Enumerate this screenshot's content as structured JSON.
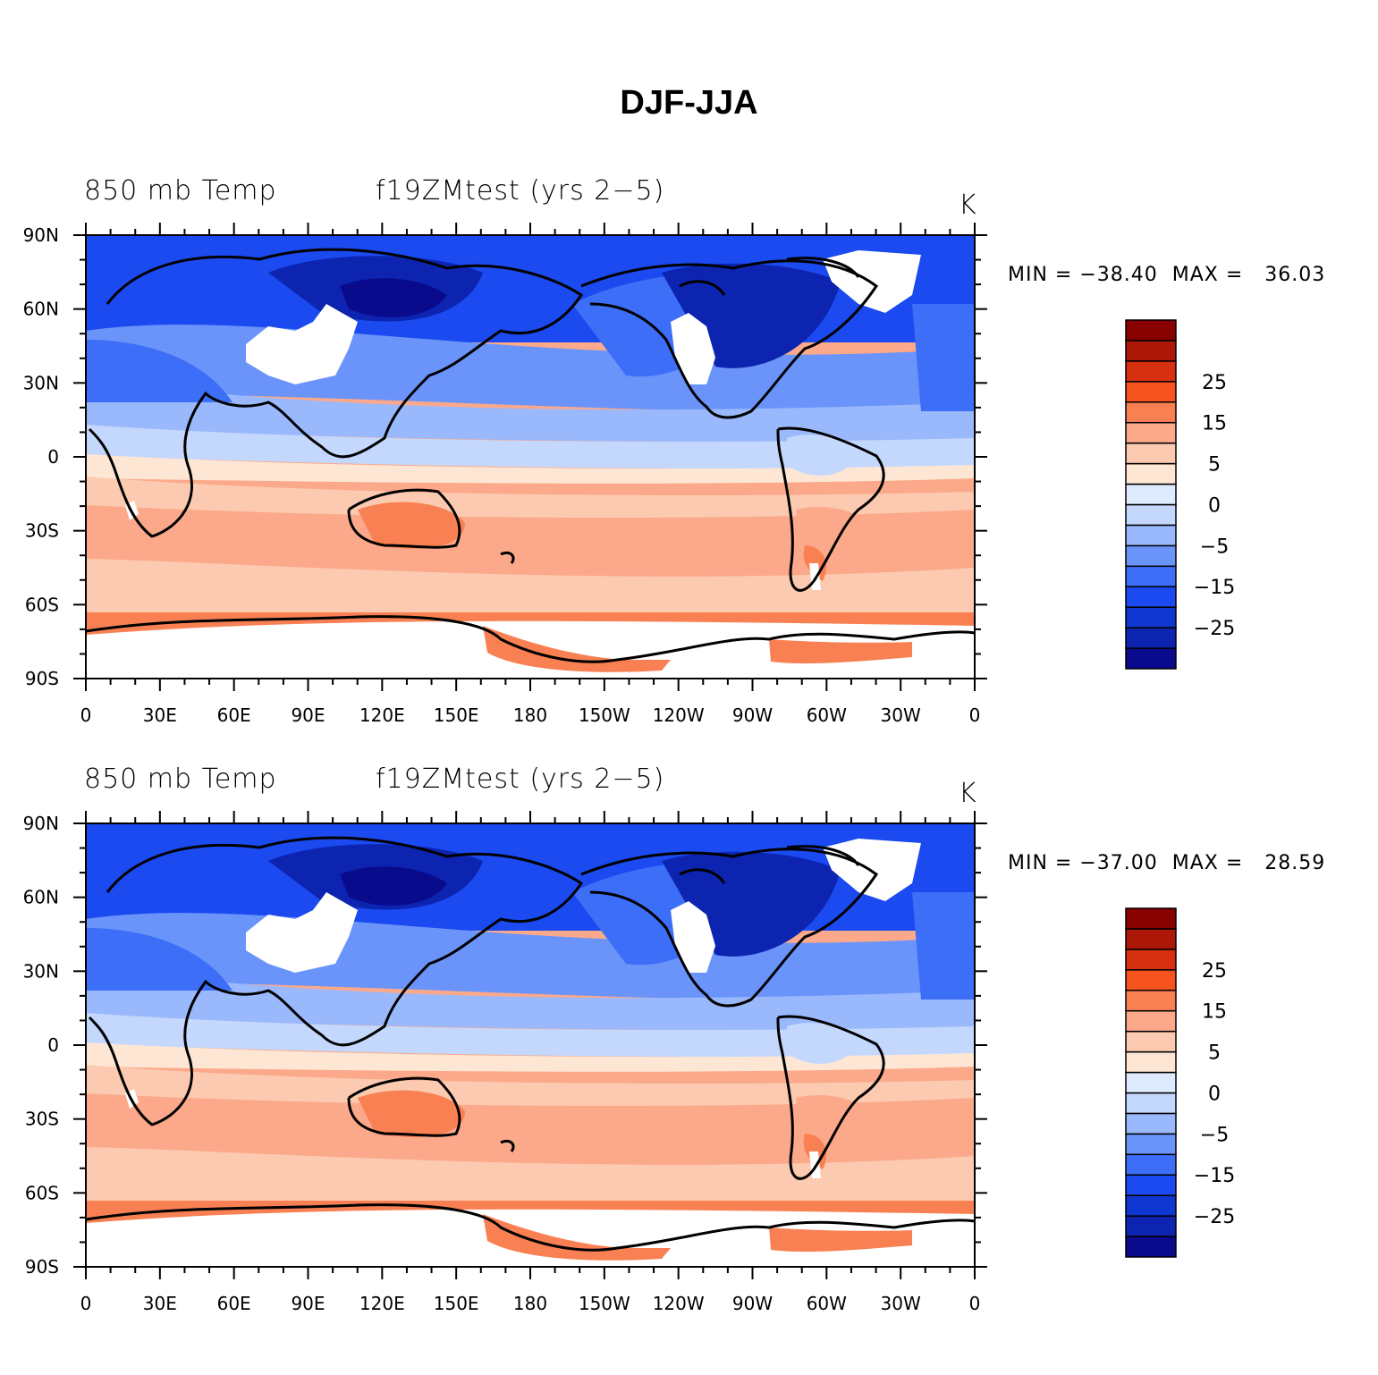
{
  "title": "DJF-JJA",
  "colorbar": {
    "colors": [
      "#0a0a8c",
      "#0c24b0",
      "#1036d2",
      "#1a4af0",
      "#3c6ef8",
      "#6a94fa",
      "#9ab8fc",
      "#c4d8fd",
      "#deebfe",
      "#fde7d4",
      "#fccab0",
      "#fba98a",
      "#f98052",
      "#f6531e",
      "#d63010",
      "#ac1808",
      "#880000"
    ],
    "labels": [
      "-25",
      "-15",
      "-5",
      "0",
      "5",
      "15",
      "25"
    ],
    "label_display": [
      "−25",
      "−15",
      "−5",
      "0",
      "5",
      "15",
      "25"
    ]
  },
  "axes": {
    "y_ticks": [
      "90N",
      "60N",
      "30N",
      "0",
      "30S",
      "60S",
      "90S"
    ],
    "x_ticks": [
      "0",
      "30E",
      "60E",
      "90E",
      "120E",
      "150E",
      "180",
      "150W",
      "120W",
      "90W",
      "60W",
      "30W",
      "0"
    ]
  },
  "palette": {
    "polar_blue": "#1a4af0",
    "deep_blue": "#0c24b0",
    "darkest_blue": "#0a0a8c",
    "mid_blue": "#3c6ef8",
    "light_blue": "#6a94fa",
    "pale_blue": "#9ab8fc",
    "paler_blue": "#c4d8fd",
    "faint_blue": "#deebfe",
    "faint_orange": "#fde7d4",
    "pale_orange": "#fccab0",
    "light_orange": "#fba98a",
    "orange": "#f98052",
    "deep_orange": "#f6531e",
    "land": "#ffffff",
    "coast": "#000000"
  },
  "panels": [
    {
      "variable": "850 mb Temp",
      "case": "f19ZMtest (yrs 2−5)",
      "units": "K",
      "min_label": "MIN =",
      "min_value": "−38.40",
      "max_label": "MAX =",
      "max_value": "36.03",
      "minmax_text": "MIN = −38.40  MAX =   36.03"
    },
    {
      "variable": "850 mb Temp",
      "case": "f19ZMtest (yrs 2−5)",
      "units": "K",
      "min_label": "MIN =",
      "min_value": "−37.00",
      "max_label": "MAX =",
      "max_value": "28.59",
      "minmax_text": "MIN = −37.00  MAX =   28.59"
    }
  ]
}
